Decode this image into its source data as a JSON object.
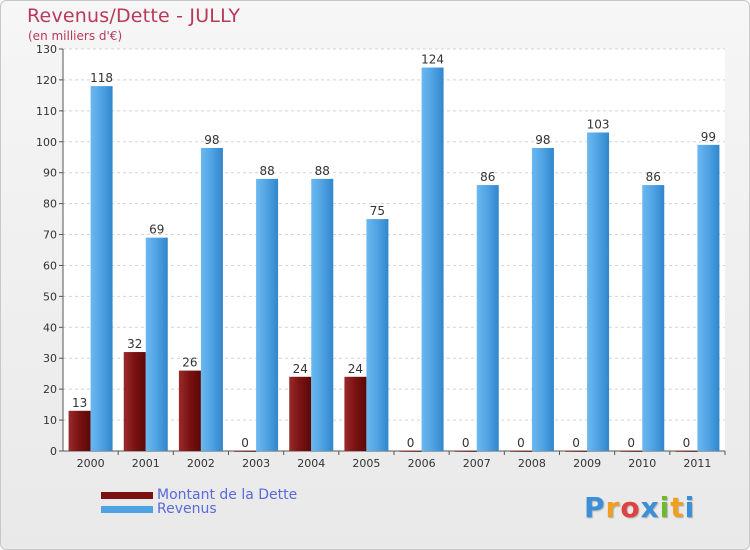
{
  "chart_data": {
    "type": "bar",
    "title": "Revenus/Dette - JULLY",
    "subtitle": "(en milliers d'€)",
    "xlabel": "",
    "ylabel": "",
    "ylim": [
      0,
      130
    ],
    "yticks": [
      0,
      10,
      20,
      30,
      40,
      50,
      60,
      70,
      80,
      90,
      100,
      110,
      120,
      130
    ],
    "grid": true,
    "categories": [
      "2000",
      "2001",
      "2002",
      "2003",
      "2004",
      "2005",
      "2006",
      "2007",
      "2008",
      "2009",
      "2010",
      "2011"
    ],
    "series": [
      {
        "name": "Montant de la Dette",
        "color": "#7a1212",
        "values": [
          13,
          32,
          26,
          0,
          24,
          24,
          0,
          0,
          0,
          0,
          0,
          0
        ]
      },
      {
        "name": "Revenus",
        "color": "#4fa3e3",
        "values": [
          118,
          69,
          98,
          88,
          88,
          75,
          124,
          86,
          98,
          103,
          86,
          99
        ]
      }
    ],
    "legend_position": "bottom-left"
  },
  "logo": {
    "letters": [
      "P",
      "r",
      "o",
      "x",
      "i",
      "t",
      "i"
    ],
    "colors": [
      "#3a8fd8",
      "#f0a020",
      "#e04040",
      "#3a8fd8",
      "#70b830",
      "#f0a020",
      "#3a8fd8"
    ]
  }
}
